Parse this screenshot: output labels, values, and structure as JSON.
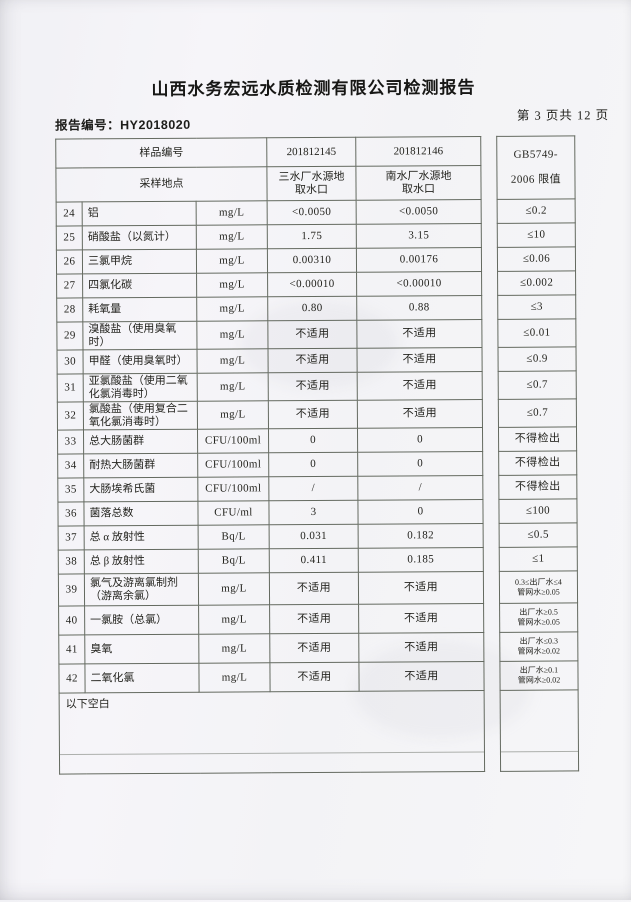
{
  "page": {
    "title": "山西水务宏远水质检测有限公司检测报告",
    "report_no": "报告编号：HY2018020",
    "page_info": "第 3 页共 12 页",
    "footer_note": "以下空白"
  },
  "table": {
    "header": {
      "sample_id_label": "样品编号",
      "sample_ids": [
        "201812145",
        "201812146"
      ],
      "location_label": "采样地点",
      "locations": [
        {
          "line1": "三水厂水源地",
          "line2": "取水口"
        },
        {
          "line1": "南水厂水源地",
          "line2": "取水口"
        }
      ],
      "limit_header_lines": [
        "GB5749-",
        "2006 限值"
      ]
    },
    "rows": [
      {
        "num": "24",
        "name": "铝",
        "unit": "mg/L",
        "v1": "<0.0050",
        "v2": "<0.0050",
        "limit": "≤0.2"
      },
      {
        "num": "25",
        "name": "硝酸盐（以氮计）",
        "unit": "mg/L",
        "v1": "1.75",
        "v2": "3.15",
        "limit": "≤10"
      },
      {
        "num": "26",
        "name": "三氯甲烷",
        "unit": "mg/L",
        "v1": "0.00310",
        "v2": "0.00176",
        "limit": "≤0.06"
      },
      {
        "num": "27",
        "name": "四氯化碳",
        "unit": "mg/L",
        "v1": "<0.00010",
        "v2": "<0.00010",
        "limit": "≤0.002"
      },
      {
        "num": "28",
        "name": "耗氧量",
        "unit": "mg/L",
        "v1": "0.80",
        "v2": "0.88",
        "limit": "≤3"
      },
      {
        "num": "29",
        "name": "溴酸盐（使用臭氧",
        "name2": "时）",
        "unit": "mg/L",
        "v1": "不适用",
        "v2": "不适用",
        "limit": "≤0.01"
      },
      {
        "num": "30",
        "name": "甲醛（使用臭氧时）",
        "unit": "mg/L",
        "v1": "不适用",
        "v2": "不适用",
        "limit": "≤0.9"
      },
      {
        "num": "31",
        "name": "亚氯酸盐（使用二氧",
        "name2": "化氯消毒时）",
        "unit": "mg/L",
        "v1": "不适用",
        "v2": "不适用",
        "limit": "≤0.7"
      },
      {
        "num": "32",
        "name": "氯酸盐（使用复合二",
        "name2": "氧化氯消毒时）",
        "unit": "mg/L",
        "v1": "不适用",
        "v2": "不适用",
        "limit": "≤0.7"
      },
      {
        "num": "33",
        "name": "总大肠菌群",
        "unit": "CFU/100ml",
        "v1": "0",
        "v2": "0",
        "limit": "不得检出"
      },
      {
        "num": "34",
        "name": "耐热大肠菌群",
        "unit": "CFU/100ml",
        "v1": "0",
        "v2": "0",
        "limit": "不得检出"
      },
      {
        "num": "35",
        "name": "大肠埃希氏菌",
        "unit": "CFU/100ml",
        "v1": "/",
        "v2": "/",
        "limit": "不得检出"
      },
      {
        "num": "36",
        "name": "菌落总数",
        "unit": "CFU/ml",
        "v1": "3",
        "v2": "0",
        "limit": "≤100"
      },
      {
        "num": "37",
        "name": "总 α 放射性",
        "unit": "Bq/L",
        "v1": "0.031",
        "v2": "0.182",
        "limit": "≤0.5"
      },
      {
        "num": "38",
        "name": "总 β 放射性",
        "unit": "Bq/L",
        "v1": "0.411",
        "v2": "0.185",
        "limit": "≤1"
      },
      {
        "num": "39",
        "name": "氯气及游离氯制剂",
        "name2": "（游离余氯）",
        "unit": "mg/L",
        "v1": "不适用",
        "v2": "不适用",
        "limit": "0.3≤出厂水≤4",
        "limit2": "管网水≥0.05"
      },
      {
        "num": "40",
        "name": "一氯胺（总氯）",
        "unit": "mg/L",
        "v1": "不适用",
        "v2": "不适用",
        "limit": "出厂水≥0.5",
        "limit2": "管网水≥0.05"
      },
      {
        "num": "41",
        "name": "臭氧",
        "unit": "mg/L",
        "v1": "不适用",
        "v2": "不适用",
        "limit": "出厂水≤0.3",
        "limit2": "管网水≥0.02"
      },
      {
        "num": "42",
        "name": "二氧化氯",
        "unit": "mg/L",
        "v1": "不适用",
        "v2": "不适用",
        "limit": "出厂水≥0.1",
        "limit2": "管网水≥0.02"
      }
    ]
  },
  "colors": {
    "paper": "#f5f4f7",
    "ink": "#24241f",
    "border": "#646a60"
  }
}
